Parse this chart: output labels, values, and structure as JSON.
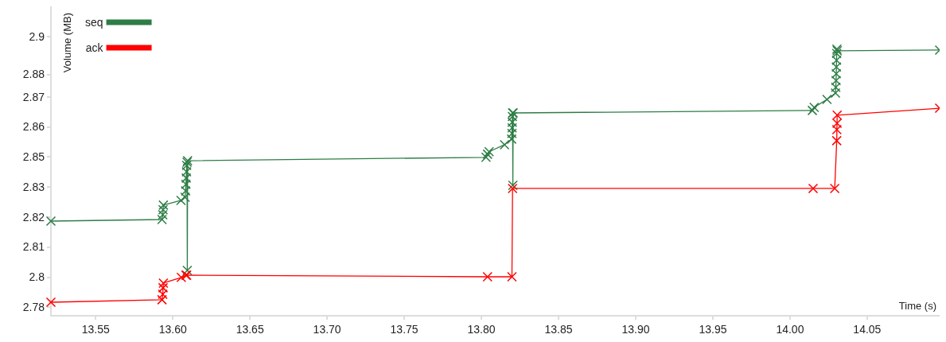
{
  "chart_data": {
    "type": "line",
    "xlabel": "Time (s)",
    "ylabel": "Volume (MB)",
    "xlim": [
      13.521,
      14.097
    ],
    "xticks": [
      {
        "value": 13.55,
        "label": "13.55"
      },
      {
        "value": 13.6,
        "label": "13.60"
      },
      {
        "value": 13.65,
        "label": "13.65"
      },
      {
        "value": 13.7,
        "label": "13.70"
      },
      {
        "value": 13.75,
        "label": "13.75"
      },
      {
        "value": 13.8,
        "label": "13.80"
      },
      {
        "value": 13.85,
        "label": "13.85"
      },
      {
        "value": 13.9,
        "label": "13.90"
      },
      {
        "value": 13.95,
        "label": "13.95"
      },
      {
        "value": 14.0,
        "label": "14.00"
      },
      {
        "value": 14.05,
        "label": "14.05"
      }
    ],
    "ylim": [
      2.7761,
      2.9134
    ],
    "yticks": [
      2.78,
      {
        "value": 2.7933,
        "label": "2.8"
      },
      {
        "value": 2.8067,
        "label": "2.81"
      },
      2.82,
      {
        "value": 2.8333,
        "label": "2.83"
      },
      {
        "value": 2.8467,
        "label": "2.85"
      },
      2.86,
      {
        "value": 2.8733,
        "label": "2.87"
      },
      {
        "value": 2.8833,
        "label": "2.88"
      },
      2.9
    ],
    "grid": false,
    "legend": "top left",
    "marker": "cross",
    "line_style": "solid",
    "series": [
      {
        "name": "seq",
        "color": "#2e7d46",
        "x": [
          13.521,
          13.593,
          13.5935,
          13.5937,
          13.5939,
          13.6053,
          13.608,
          13.6083,
          13.6085,
          13.6087,
          13.6089,
          13.609,
          13.6092,
          13.6094,
          13.6096,
          13.803,
          13.804,
          13.805,
          13.815,
          13.8196,
          13.8198,
          13.8199,
          13.82,
          13.8201,
          13.8202,
          13.8204,
          13.8206,
          14.0145,
          14.0157,
          14.024,
          14.0295,
          14.0297,
          14.0299,
          14.03,
          14.0301,
          14.0302,
          14.0303,
          14.0304,
          14.0306,
          14.097
        ],
        "values": [
          2.8181,
          2.8188,
          2.8209,
          2.8231,
          2.8252,
          2.8273,
          2.8287,
          2.8315,
          2.8344,
          2.8372,
          2.84,
          2.8428,
          2.8442,
          2.7962,
          2.8449,
          2.8464,
          2.8478,
          2.8489,
          2.852,
          2.8545,
          2.857,
          2.8595,
          2.862,
          2.8645,
          2.8661,
          2.834,
          2.8661,
          2.8672,
          2.8686,
          2.8721,
          2.8749,
          2.8775,
          2.8805,
          2.8835,
          2.8865,
          2.8895,
          2.8925,
          2.8944,
          2.8937,
          2.894
        ]
      },
      {
        "name": "ack",
        "color": "#ff0000",
        "x": [
          13.521,
          13.593,
          13.5935,
          13.5937,
          13.5939,
          13.6055,
          13.6085,
          13.609,
          13.804,
          13.8198,
          13.8202,
          14.015,
          14.029,
          14.0303,
          14.0304,
          14.0305,
          14.0306,
          14.097
        ],
        "values": [
          2.7821,
          2.7832,
          2.7856,
          2.7885,
          2.7906,
          2.7931,
          2.7941,
          2.7941,
          2.7934,
          2.7934,
          2.8326,
          2.8326,
          2.8326,
          2.8538,
          2.8587,
          2.8615,
          2.8651,
          2.8682
        ]
      }
    ]
  }
}
